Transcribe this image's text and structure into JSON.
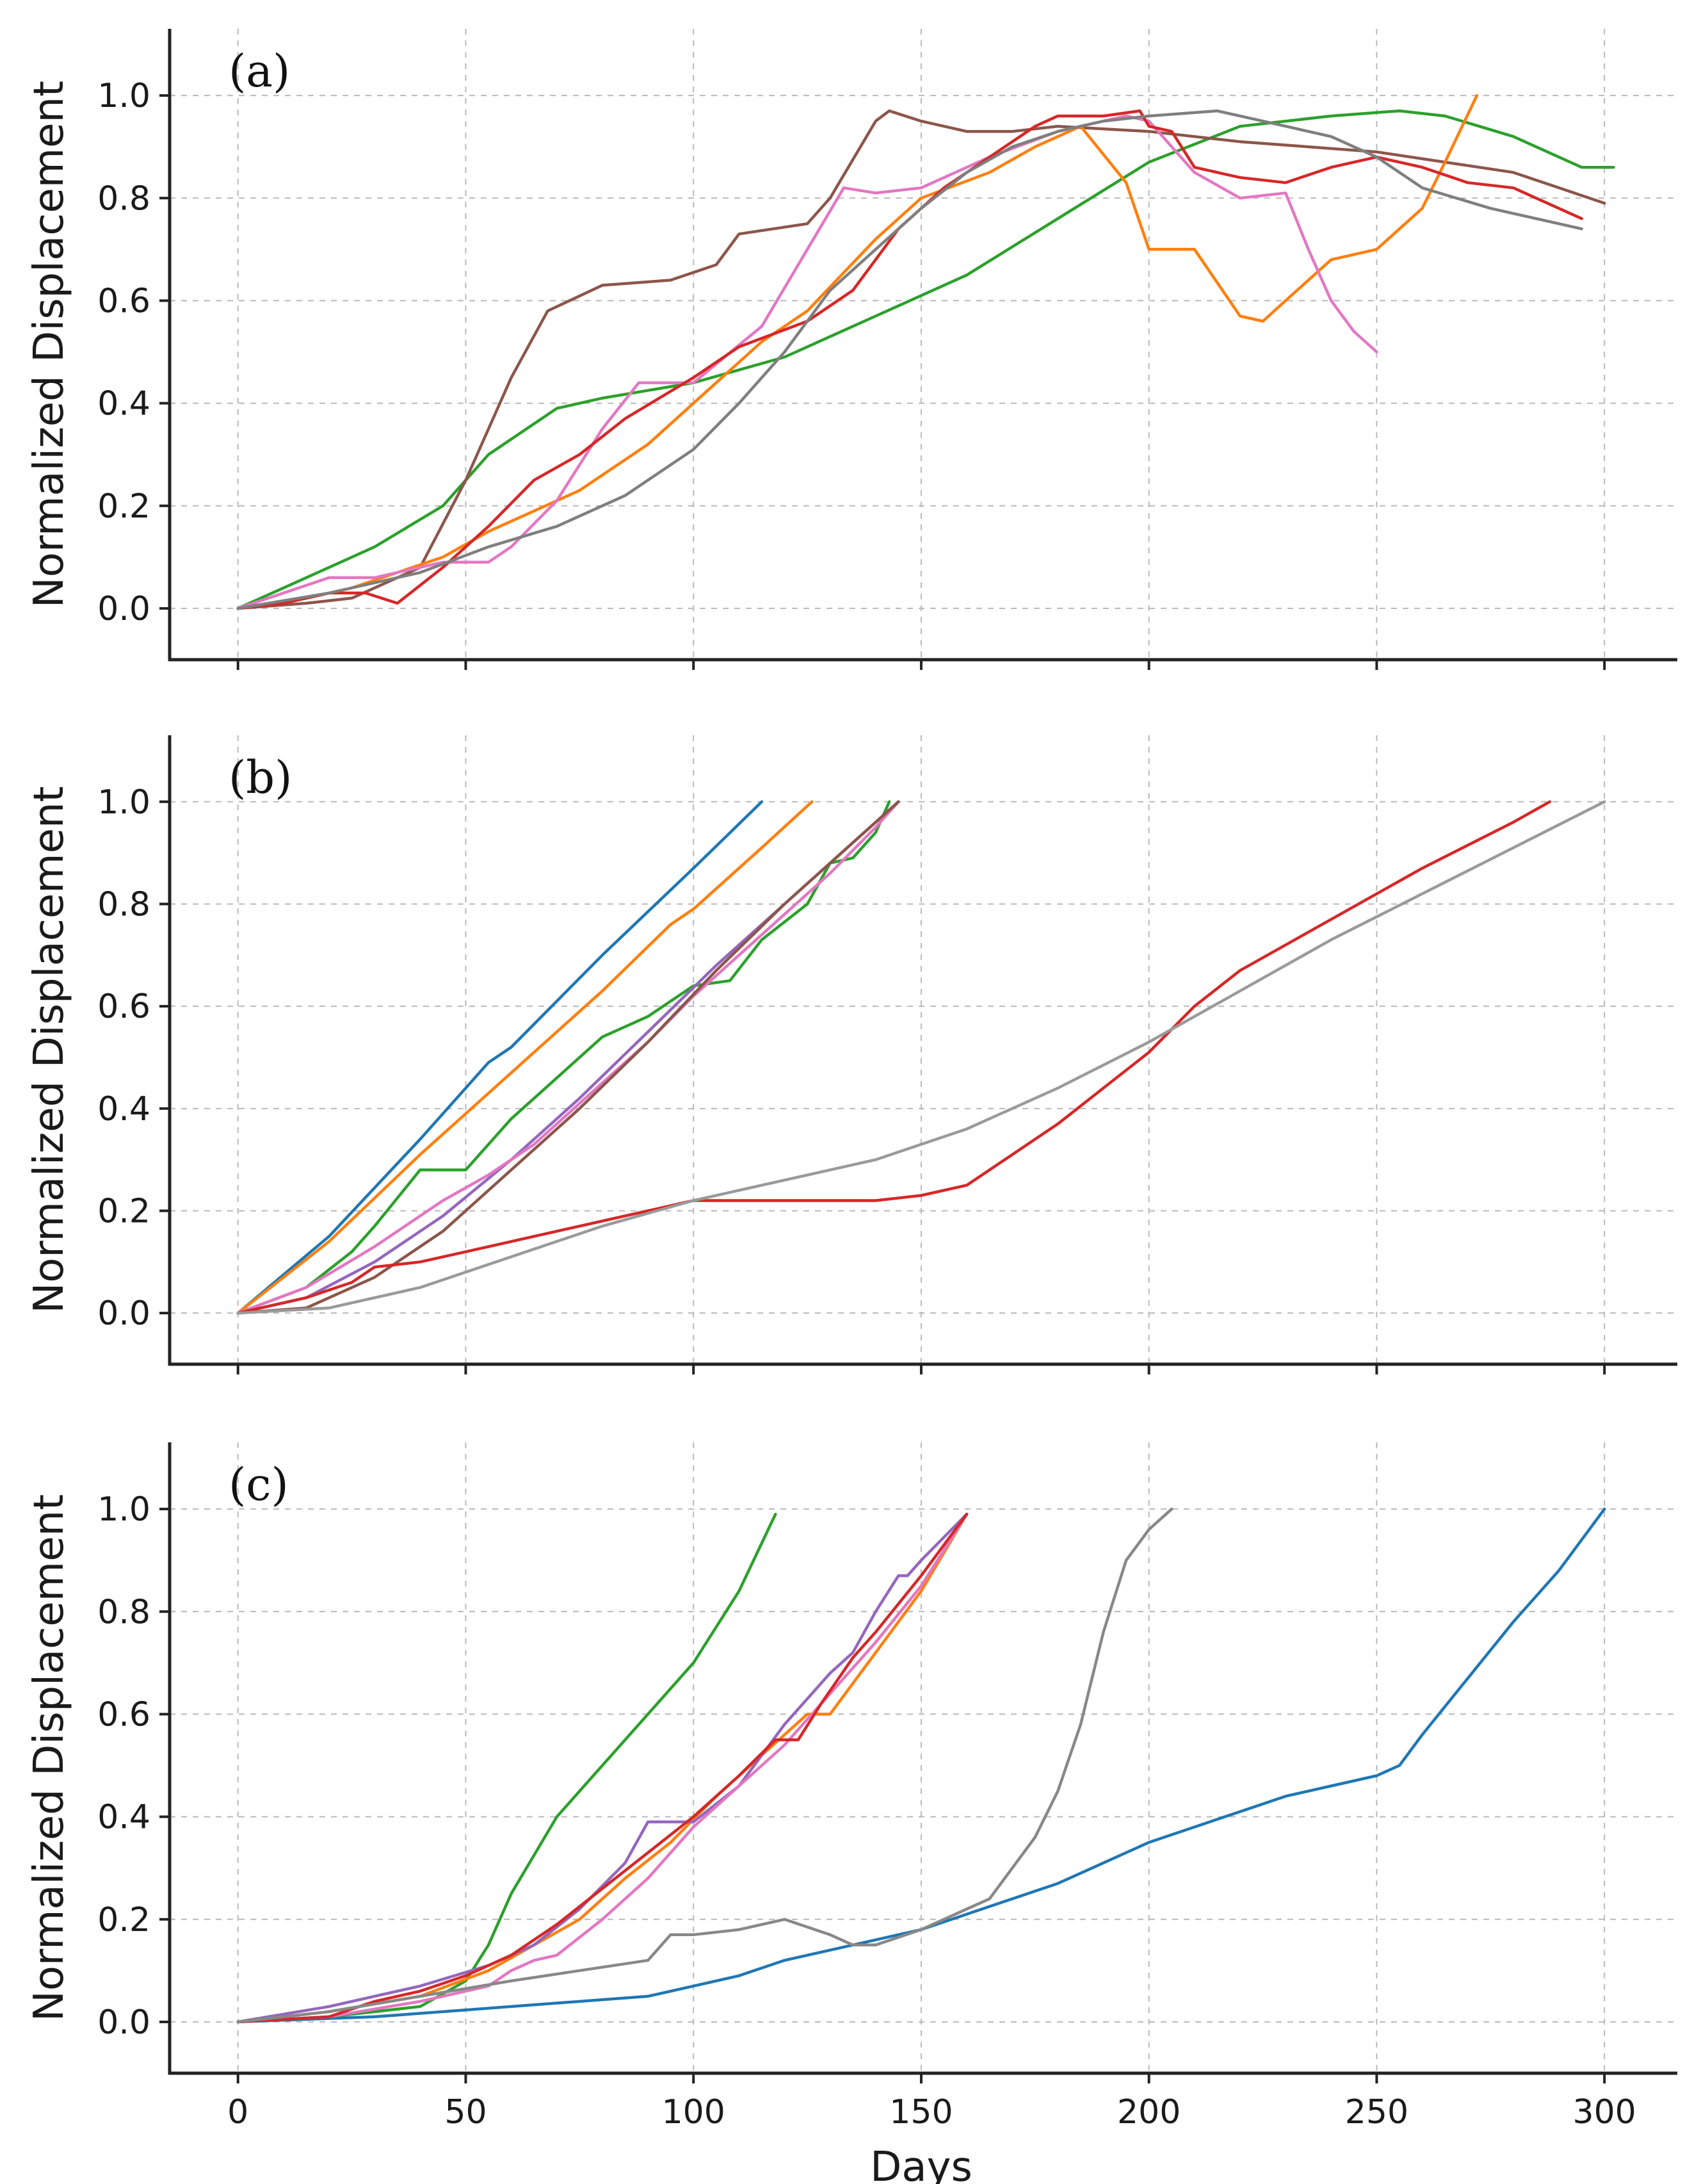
{
  "figure": {
    "xlabel": "Days",
    "ylabel": "Normalized Displacement"
  },
  "chart_data": [
    {
      "type": "line",
      "panel_label": "(a)",
      "xlabel": "",
      "ylabel": "Normalized Displacement",
      "xlim": [
        -15,
        316
      ],
      "ylim": [
        -0.1,
        1.13
      ],
      "xticks": [
        0,
        50,
        100,
        150,
        200,
        250,
        300
      ],
      "yticks": [
        0.0,
        0.2,
        0.4,
        0.6,
        0.8,
        1.0
      ],
      "tick_labels_x": [
        "",
        "",
        "",
        "",
        "",
        "",
        ""
      ],
      "tick_labels_y": [
        "0.0",
        "0.2",
        "0.4",
        "0.6",
        "0.8",
        "1.0"
      ],
      "grid": true,
      "series": [
        {
          "name": "green",
          "color": "#2ca02c",
          "x": [
            0,
            10,
            20,
            30,
            45,
            55,
            70,
            80,
            100,
            120,
            140,
            160,
            180,
            200,
            220,
            240,
            255,
            265,
            280,
            295,
            302
          ],
          "y": [
            0,
            0.04,
            0.08,
            0.12,
            0.2,
            0.3,
            0.39,
            0.41,
            0.44,
            0.49,
            0.57,
            0.65,
            0.76,
            0.87,
            0.94,
            0.96,
            0.97,
            0.96,
            0.92,
            0.86,
            0.86
          ]
        },
        {
          "name": "brown",
          "color": "#8c564b",
          "x": [
            0,
            15,
            25,
            30,
            40,
            50,
            60,
            68,
            80,
            95,
            105,
            110,
            125,
            130,
            140,
            143,
            150,
            160,
            170,
            180,
            200,
            220,
            250,
            280,
            300
          ],
          "y": [
            0,
            0.01,
            0.02,
            0.04,
            0.08,
            0.25,
            0.45,
            0.58,
            0.63,
            0.64,
            0.67,
            0.73,
            0.75,
            0.8,
            0.95,
            0.97,
            0.95,
            0.93,
            0.93,
            0.94,
            0.93,
            0.91,
            0.89,
            0.85,
            0.79
          ]
        },
        {
          "name": "orange",
          "color": "#ff7f0e",
          "x": [
            0,
            15,
            25,
            35,
            45,
            55,
            65,
            75,
            90,
            100,
            115,
            125,
            140,
            150,
            165,
            175,
            185,
            195,
            200,
            210,
            220,
            225,
            230,
            240,
            250,
            260,
            265,
            272
          ],
          "y": [
            0,
            0.02,
            0.04,
            0.07,
            0.1,
            0.15,
            0.19,
            0.23,
            0.32,
            0.4,
            0.52,
            0.58,
            0.72,
            0.8,
            0.85,
            0.9,
            0.94,
            0.83,
            0.7,
            0.7,
            0.57,
            0.56,
            0.6,
            0.68,
            0.7,
            0.78,
            0.87,
            1.0
          ]
        },
        {
          "name": "pink",
          "color": "#e377c2",
          "x": [
            0,
            10,
            20,
            30,
            45,
            55,
            60,
            70,
            80,
            88,
            100,
            115,
            125,
            133,
            140,
            150,
            165,
            180,
            195,
            200,
            210,
            220,
            230,
            235,
            240,
            245,
            250
          ],
          "y": [
            0,
            0.03,
            0.06,
            0.06,
            0.09,
            0.09,
            0.12,
            0.21,
            0.35,
            0.44,
            0.44,
            0.55,
            0.7,
            0.82,
            0.81,
            0.82,
            0.88,
            0.93,
            0.96,
            0.95,
            0.85,
            0.8,
            0.81,
            0.7,
            0.6,
            0.54,
            0.5
          ]
        },
        {
          "name": "red",
          "color": "#d62728",
          "x": [
            0,
            10,
            20,
            28,
            35,
            45,
            55,
            65,
            75,
            85,
            100,
            110,
            125,
            135,
            145,
            155,
            165,
            175,
            180,
            190,
            198,
            200,
            205,
            210,
            220,
            230,
            240,
            250,
            260,
            270,
            280,
            290,
            295
          ],
          "y": [
            0,
            0.01,
            0.03,
            0.03,
            0.01,
            0.08,
            0.16,
            0.25,
            0.3,
            0.37,
            0.45,
            0.51,
            0.56,
            0.62,
            0.74,
            0.82,
            0.88,
            0.94,
            0.96,
            0.96,
            0.97,
            0.94,
            0.93,
            0.86,
            0.84,
            0.83,
            0.86,
            0.88,
            0.86,
            0.83,
            0.82,
            0.78,
            0.76
          ]
        },
        {
          "name": "gray",
          "color": "#7f7f7f",
          "x": [
            0,
            20,
            40,
            55,
            70,
            85,
            100,
            110,
            120,
            130,
            140,
            150,
            160,
            170,
            180,
            190,
            200,
            215,
            225,
            240,
            250,
            260,
            275,
            295
          ],
          "y": [
            0,
            0.03,
            0.07,
            0.12,
            0.16,
            0.22,
            0.31,
            0.4,
            0.5,
            0.62,
            0.7,
            0.78,
            0.85,
            0.9,
            0.93,
            0.95,
            0.96,
            0.97,
            0.95,
            0.92,
            0.88,
            0.82,
            0.78,
            0.74
          ]
        }
      ]
    },
    {
      "type": "line",
      "panel_label": "(b)",
      "xlabel": "",
      "ylabel": "Normalized Displacement",
      "xlim": [
        -15,
        316
      ],
      "ylim": [
        -0.1,
        1.13
      ],
      "xticks": [
        0,
        50,
        100,
        150,
        200,
        250,
        300
      ],
      "yticks": [
        0.0,
        0.2,
        0.4,
        0.6,
        0.8,
        1.0
      ],
      "tick_labels_x": [
        "",
        "",
        "",
        "",
        "",
        "",
        ""
      ],
      "tick_labels_y": [
        "0.0",
        "0.2",
        "0.4",
        "0.6",
        "0.8",
        "1.0"
      ],
      "grid": true,
      "series": [
        {
          "name": "blue",
          "color": "#1f77b4",
          "x": [
            0,
            20,
            40,
            55,
            60,
            80,
            100,
            115
          ],
          "y": [
            0,
            0.15,
            0.34,
            0.49,
            0.52,
            0.7,
            0.87,
            1.0
          ]
        },
        {
          "name": "orange",
          "color": "#ff7f0e",
          "x": [
            0,
            20,
            40,
            60,
            80,
            95,
            100,
            115,
            126
          ],
          "y": [
            0,
            0.14,
            0.31,
            0.47,
            0.63,
            0.76,
            0.79,
            0.91,
            1.0
          ]
        },
        {
          "name": "green",
          "color": "#2ca02c",
          "x": [
            0,
            15,
            25,
            30,
            40,
            50,
            60,
            70,
            80,
            90,
            100,
            108,
            115,
            125,
            130,
            135,
            140,
            143
          ],
          "y": [
            0,
            0.05,
            0.12,
            0.17,
            0.28,
            0.28,
            0.38,
            0.46,
            0.54,
            0.58,
            0.64,
            0.65,
            0.73,
            0.8,
            0.88,
            0.89,
            0.94,
            1.0
          ]
        },
        {
          "name": "purple",
          "color": "#9467bd",
          "x": [
            0,
            15,
            30,
            45,
            60,
            75,
            90,
            105,
            120,
            135,
            145
          ],
          "y": [
            0,
            0.03,
            0.1,
            0.19,
            0.3,
            0.42,
            0.55,
            0.68,
            0.8,
            0.92,
            1.0
          ]
        },
        {
          "name": "pink",
          "color": "#e377c2",
          "x": [
            0,
            15,
            30,
            45,
            55,
            65,
            75,
            90,
            100,
            110,
            120,
            130,
            140,
            145
          ],
          "y": [
            0,
            0.05,
            0.13,
            0.22,
            0.27,
            0.33,
            0.41,
            0.53,
            0.62,
            0.7,
            0.78,
            0.86,
            0.95,
            1.0
          ]
        },
        {
          "name": "brown",
          "color": "#8c564b",
          "x": [
            0,
            15,
            30,
            45,
            60,
            75,
            90,
            105,
            120,
            135,
            145
          ],
          "y": [
            0,
            0.01,
            0.07,
            0.16,
            0.28,
            0.4,
            0.53,
            0.67,
            0.8,
            0.92,
            1.0
          ]
        },
        {
          "name": "red",
          "color": "#d62728",
          "x": [
            0,
            15,
            25,
            30,
            40,
            50,
            60,
            75,
            90,
            100,
            110,
            120,
            130,
            140,
            150,
            160,
            170,
            180,
            190,
            200,
            210,
            220,
            240,
            260,
            280,
            288
          ],
          "y": [
            0,
            0.03,
            0.06,
            0.09,
            0.1,
            0.12,
            0.14,
            0.17,
            0.2,
            0.22,
            0.22,
            0.22,
            0.22,
            0.22,
            0.23,
            0.25,
            0.31,
            0.37,
            0.44,
            0.51,
            0.6,
            0.67,
            0.77,
            0.87,
            0.96,
            1.0
          ]
        },
        {
          "name": "gray",
          "color": "#9a9a9a",
          "x": [
            0,
            20,
            40,
            60,
            80,
            100,
            120,
            140,
            160,
            180,
            200,
            220,
            240,
            260,
            280,
            300
          ],
          "y": [
            0,
            0.01,
            0.05,
            0.11,
            0.17,
            0.22,
            0.26,
            0.3,
            0.36,
            0.44,
            0.53,
            0.63,
            0.73,
            0.82,
            0.91,
            1.0
          ]
        }
      ]
    },
    {
      "type": "line",
      "panel_label": "(c)",
      "xlabel": "Days",
      "ylabel": "Normalized Displacement",
      "xlim": [
        -15,
        316
      ],
      "ylim": [
        -0.1,
        1.13
      ],
      "xticks": [
        0,
        50,
        100,
        150,
        200,
        250,
        300
      ],
      "yticks": [
        0.0,
        0.2,
        0.4,
        0.6,
        0.8,
        1.0
      ],
      "tick_labels_x": [
        "0",
        "50",
        "100",
        "150",
        "200",
        "250",
        "300"
      ],
      "tick_labels_y": [
        "0.0",
        "0.2",
        "0.4",
        "0.6",
        "0.8",
        "1.0"
      ],
      "grid": true,
      "series": [
        {
          "name": "blue",
          "color": "#1f77b4",
          "x": [
            0,
            30,
            60,
            90,
            100,
            110,
            120,
            130,
            140,
            150,
            160,
            170,
            180,
            190,
            200,
            210,
            220,
            230,
            240,
            250,
            255,
            260,
            270,
            280,
            290,
            300
          ],
          "y": [
            0,
            0.01,
            0.03,
            0.05,
            0.07,
            0.09,
            0.12,
            0.14,
            0.16,
            0.18,
            0.21,
            0.24,
            0.27,
            0.31,
            0.35,
            0.38,
            0.41,
            0.44,
            0.46,
            0.48,
            0.5,
            0.56,
            0.67,
            0.78,
            0.88,
            1.0
          ]
        },
        {
          "name": "green",
          "color": "#2ca02c",
          "x": [
            0,
            20,
            40,
            50,
            55,
            60,
            70,
            80,
            90,
            100,
            110,
            118
          ],
          "y": [
            0,
            0.01,
            0.03,
            0.08,
            0.15,
            0.25,
            0.4,
            0.5,
            0.6,
            0.7,
            0.84,
            0.99
          ]
        },
        {
          "name": "orange",
          "color": "#ff7f0e",
          "x": [
            0,
            20,
            40,
            55,
            65,
            75,
            85,
            95,
            105,
            115,
            125,
            130,
            140,
            150,
            160
          ],
          "y": [
            0,
            0.02,
            0.05,
            0.1,
            0.15,
            0.2,
            0.28,
            0.35,
            0.44,
            0.52,
            0.6,
            0.6,
            0.72,
            0.84,
            0.99
          ]
        },
        {
          "name": "purple",
          "color": "#9467bd",
          "x": [
            0,
            20,
            40,
            55,
            65,
            75,
            85,
            90,
            100,
            110,
            120,
            130,
            135,
            140,
            145,
            147,
            150,
            160
          ],
          "y": [
            0,
            0.03,
            0.07,
            0.11,
            0.15,
            0.22,
            0.31,
            0.39,
            0.39,
            0.46,
            0.58,
            0.68,
            0.72,
            0.8,
            0.87,
            0.87,
            0.9,
            0.99
          ]
        },
        {
          "name": "pink",
          "color": "#e377c2",
          "x": [
            0,
            20,
            40,
            55,
            60,
            65,
            70,
            80,
            90,
            100,
            110,
            120,
            130,
            140,
            150,
            160
          ],
          "y": [
            0,
            0.01,
            0.04,
            0.07,
            0.1,
            0.12,
            0.13,
            0.2,
            0.28,
            0.38,
            0.46,
            0.54,
            0.64,
            0.74,
            0.85,
            0.99
          ]
        },
        {
          "name": "red",
          "color": "#d62728",
          "x": [
            0,
            20,
            30,
            40,
            50,
            60,
            70,
            80,
            90,
            100,
            110,
            118,
            123,
            128,
            135,
            140,
            150,
            160
          ],
          "y": [
            0,
            0.01,
            0.04,
            0.06,
            0.09,
            0.13,
            0.19,
            0.26,
            0.33,
            0.4,
            0.48,
            0.55,
            0.55,
            0.62,
            0.71,
            0.76,
            0.87,
            0.99
          ]
        },
        {
          "name": "gray",
          "color": "#888888",
          "x": [
            0,
            20,
            40,
            60,
            75,
            90,
            95,
            100,
            110,
            120,
            130,
            135,
            140,
            150,
            160,
            165,
            170,
            175,
            180,
            185,
            190,
            195,
            200,
            205
          ],
          "y": [
            0,
            0.02,
            0.05,
            0.08,
            0.1,
            0.12,
            0.17,
            0.17,
            0.18,
            0.2,
            0.17,
            0.15,
            0.15,
            0.18,
            0.22,
            0.24,
            0.3,
            0.36,
            0.45,
            0.58,
            0.76,
            0.9,
            0.96,
            1.0
          ]
        }
      ]
    }
  ]
}
